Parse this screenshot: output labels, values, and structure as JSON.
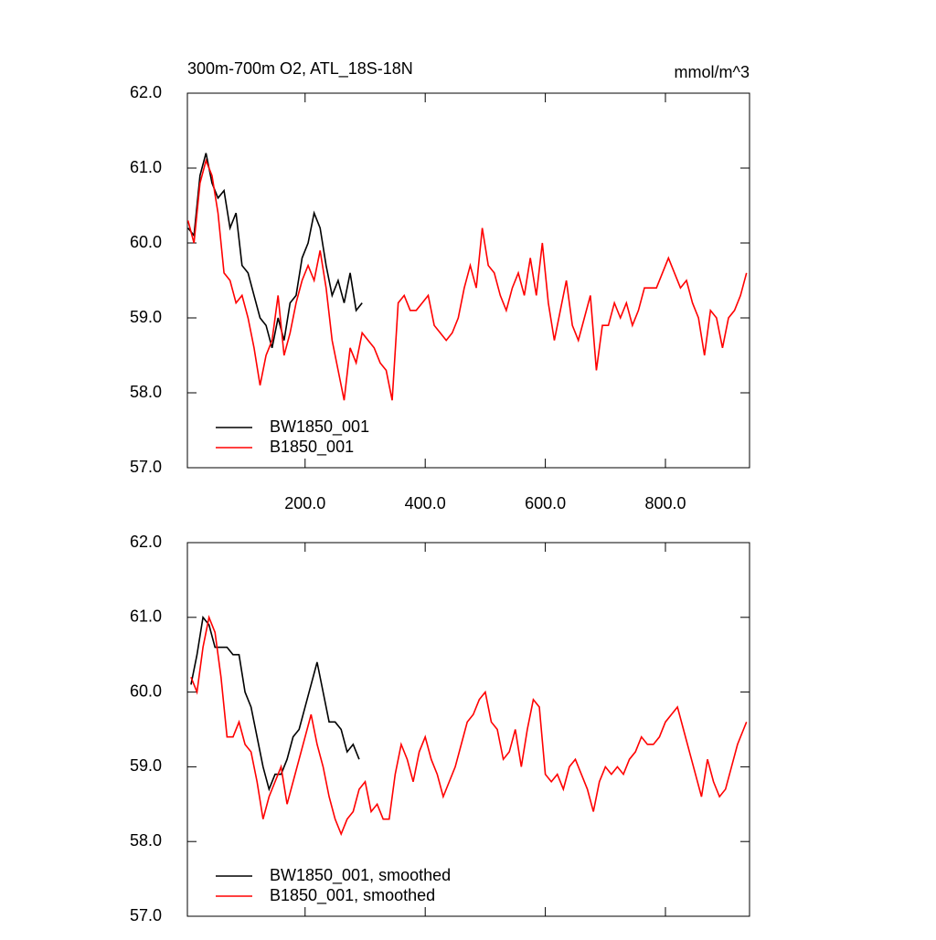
{
  "chart_data": [
    {
      "type": "line",
      "title": "300m-700m O2, ATL_18S-18N",
      "units_label": "mmol/m^3",
      "xlim": [
        4,
        940
      ],
      "ylim": [
        57,
        62
      ],
      "xticks": [
        {
          "value": 200,
          "label": "200.0"
        },
        {
          "value": 400,
          "label": "400.0"
        },
        {
          "value": 600,
          "label": "600.0"
        },
        {
          "value": 800,
          "label": "800.0"
        }
      ],
      "yticks": [
        {
          "value": 57,
          "label": "57.0"
        },
        {
          "value": 58,
          "label": "58.0"
        },
        {
          "value": 59,
          "label": "59.0"
        },
        {
          "value": 60,
          "label": "60.0"
        },
        {
          "value": 61,
          "label": "61.0"
        },
        {
          "value": 62,
          "label": "62.0"
        }
      ],
      "legend": "lower left",
      "series": [
        {
          "name": "BW1850_001",
          "color": "#000000",
          "x": [
            5,
            15,
            25,
            35,
            45,
            55,
            65,
            75,
            85,
            95,
            105,
            115,
            125,
            135,
            145,
            155,
            165,
            175,
            185,
            195,
            205,
            215,
            225,
            235,
            245,
            255,
            265,
            275,
            285,
            295
          ],
          "values": [
            60.2,
            60.1,
            60.9,
            61.2,
            60.8,
            60.6,
            60.7,
            60.2,
            60.4,
            59.7,
            59.6,
            59.3,
            59.0,
            58.9,
            58.6,
            59.0,
            58.7,
            59.2,
            59.3,
            59.8,
            60.0,
            60.4,
            60.2,
            59.7,
            59.3,
            59.5,
            59.2,
            59.6,
            59.1,
            59.2
          ]
        },
        {
          "name": "B1850_001",
          "color": "#ff0000",
          "x": [
            5,
            15,
            25,
            35,
            45,
            55,
            65,
            75,
            85,
            95,
            105,
            115,
            125,
            135,
            145,
            155,
            165,
            175,
            185,
            195,
            205,
            215,
            225,
            235,
            245,
            255,
            265,
            275,
            285,
            295,
            305,
            315,
            325,
            335,
            345,
            355,
            365,
            375,
            385,
            395,
            405,
            415,
            425,
            435,
            445,
            455,
            465,
            475,
            485,
            495,
            505,
            515,
            525,
            535,
            545,
            555,
            565,
            575,
            585,
            595,
            605,
            615,
            625,
            635,
            645,
            655,
            665,
            675,
            685,
            695,
            705,
            715,
            725,
            735,
            745,
            755,
            765,
            775,
            785,
            795,
            805,
            815,
            825,
            835,
            845,
            855,
            865,
            875,
            885,
            895,
            905,
            915,
            925,
            935
          ],
          "values": [
            60.3,
            60.0,
            60.8,
            61.1,
            60.9,
            60.4,
            59.6,
            59.5,
            59.2,
            59.3,
            59.0,
            58.6,
            58.1,
            58.5,
            58.7,
            59.3,
            58.5,
            58.8,
            59.2,
            59.5,
            59.7,
            59.5,
            59.9,
            59.4,
            58.7,
            58.3,
            57.9,
            58.6,
            58.4,
            58.8,
            58.7,
            58.6,
            58.4,
            58.3,
            57.9,
            59.2,
            59.3,
            59.1,
            59.1,
            59.2,
            59.3,
            58.9,
            58.8,
            58.7,
            58.8,
            59.0,
            59.4,
            59.7,
            59.4,
            60.2,
            59.7,
            59.6,
            59.3,
            59.1,
            59.4,
            59.6,
            59.3,
            59.8,
            59.3,
            60.0,
            59.2,
            58.7,
            59.1,
            59.5,
            58.9,
            58.7,
            59.0,
            59.3,
            58.3,
            58.9,
            58.9,
            59.2,
            59.0,
            59.2,
            58.9,
            59.1,
            59.4,
            59.4,
            59.4,
            59.6,
            59.8,
            59.6,
            59.4,
            59.5,
            59.2,
            59.0,
            58.5,
            59.1,
            59.0,
            58.6,
            59.0,
            59.1,
            59.3,
            59.6
          ]
        }
      ]
    },
    {
      "type": "line",
      "xlim": [
        4,
        940
      ],
      "ylim": [
        57,
        62
      ],
      "xticks": [
        200,
        400,
        600,
        800
      ],
      "yticks": [
        {
          "value": 57,
          "label": "57.0"
        },
        {
          "value": 58,
          "label": "58.0"
        },
        {
          "value": 59,
          "label": "59.0"
        },
        {
          "value": 60,
          "label": "60.0"
        },
        {
          "value": 61,
          "label": "61.0"
        },
        {
          "value": 62,
          "label": "62.0"
        }
      ],
      "legend": "lower left",
      "series": [
        {
          "name": "BW1850_001, smoothed",
          "color": "#000000",
          "x": [
            10,
            20,
            30,
            40,
            50,
            60,
            70,
            80,
            90,
            100,
            110,
            120,
            130,
            140,
            150,
            160,
            170,
            180,
            190,
            200,
            210,
            220,
            230,
            240,
            250,
            260,
            270,
            280,
            290
          ],
          "values": [
            60.1,
            60.5,
            61.0,
            60.9,
            60.6,
            60.6,
            60.6,
            60.5,
            60.5,
            60.0,
            59.8,
            59.4,
            59.0,
            58.7,
            58.9,
            58.9,
            59.1,
            59.4,
            59.5,
            59.8,
            60.1,
            60.4,
            60.0,
            59.6,
            59.6,
            59.5,
            59.2,
            59.3,
            59.1
          ]
        },
        {
          "name": "B1850_001, smoothed",
          "color": "#ff0000",
          "x": [
            10,
            20,
            30,
            40,
            50,
            60,
            70,
            80,
            90,
            100,
            110,
            120,
            130,
            140,
            150,
            160,
            170,
            180,
            190,
            200,
            210,
            220,
            230,
            240,
            250,
            260,
            270,
            280,
            290,
            300,
            310,
            320,
            330,
            340,
            350,
            360,
            370,
            380,
            390,
            400,
            410,
            420,
            430,
            440,
            450,
            460,
            470,
            480,
            490,
            500,
            510,
            520,
            530,
            540,
            550,
            560,
            570,
            580,
            590,
            600,
            610,
            620,
            630,
            640,
            650,
            660,
            670,
            680,
            690,
            700,
            710,
            720,
            730,
            740,
            750,
            760,
            770,
            780,
            790,
            800,
            810,
            820,
            830,
            840,
            850,
            860,
            870,
            880,
            890,
            900,
            910,
            920,
            930,
            935
          ],
          "values": [
            60.2,
            60.0,
            60.6,
            61.0,
            60.8,
            60.2,
            59.4,
            59.4,
            59.6,
            59.3,
            59.2,
            58.8,
            58.3,
            58.6,
            58.8,
            59.0,
            58.5,
            58.8,
            59.1,
            59.4,
            59.7,
            59.3,
            59.0,
            58.6,
            58.3,
            58.1,
            58.3,
            58.4,
            58.7,
            58.8,
            58.4,
            58.5,
            58.3,
            58.3,
            58.9,
            59.3,
            59.1,
            58.8,
            59.2,
            59.4,
            59.1,
            58.9,
            58.6,
            58.8,
            59.0,
            59.3,
            59.6,
            59.7,
            59.9,
            60.0,
            59.6,
            59.5,
            59.1,
            59.2,
            59.5,
            59.0,
            59.5,
            59.9,
            59.8,
            58.9,
            58.8,
            58.9,
            58.7,
            59.0,
            59.1,
            58.9,
            58.7,
            58.4,
            58.8,
            59.0,
            58.9,
            59.0,
            58.9,
            59.1,
            59.2,
            59.4,
            59.3,
            59.3,
            59.4,
            59.6,
            59.7,
            59.8,
            59.5,
            59.2,
            58.9,
            58.6,
            59.1,
            58.8,
            58.6,
            58.7,
            59.0,
            59.3,
            59.5,
            59.6
          ]
        }
      ]
    }
  ]
}
